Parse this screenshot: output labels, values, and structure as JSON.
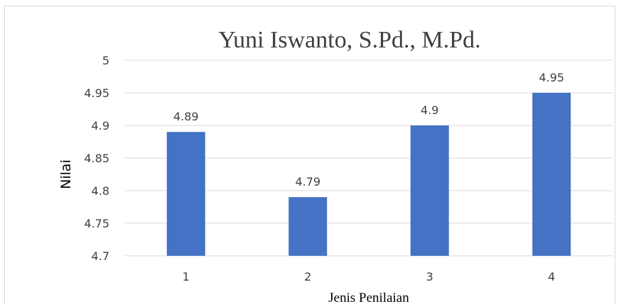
{
  "chart_data": {
    "type": "bar",
    "title": "Yuni Iswanto, S.Pd., M.Pd.",
    "xlabel": "Jenis Penilaian",
    "ylabel": "Nilai",
    "categories": [
      "1",
      "2",
      "3",
      "4"
    ],
    "values": [
      4.89,
      4.79,
      4.9,
      4.95
    ],
    "data_labels": [
      "4.89",
      "4.79",
      "4.9",
      "4.95"
    ],
    "y_ticks": [
      "4.7",
      "4.75",
      "4.8",
      "4.85",
      "4.9",
      "4.95",
      "5"
    ],
    "ylim": [
      4.7,
      5
    ],
    "grid": true,
    "legend": "none",
    "bar_color": "#4472c4"
  }
}
